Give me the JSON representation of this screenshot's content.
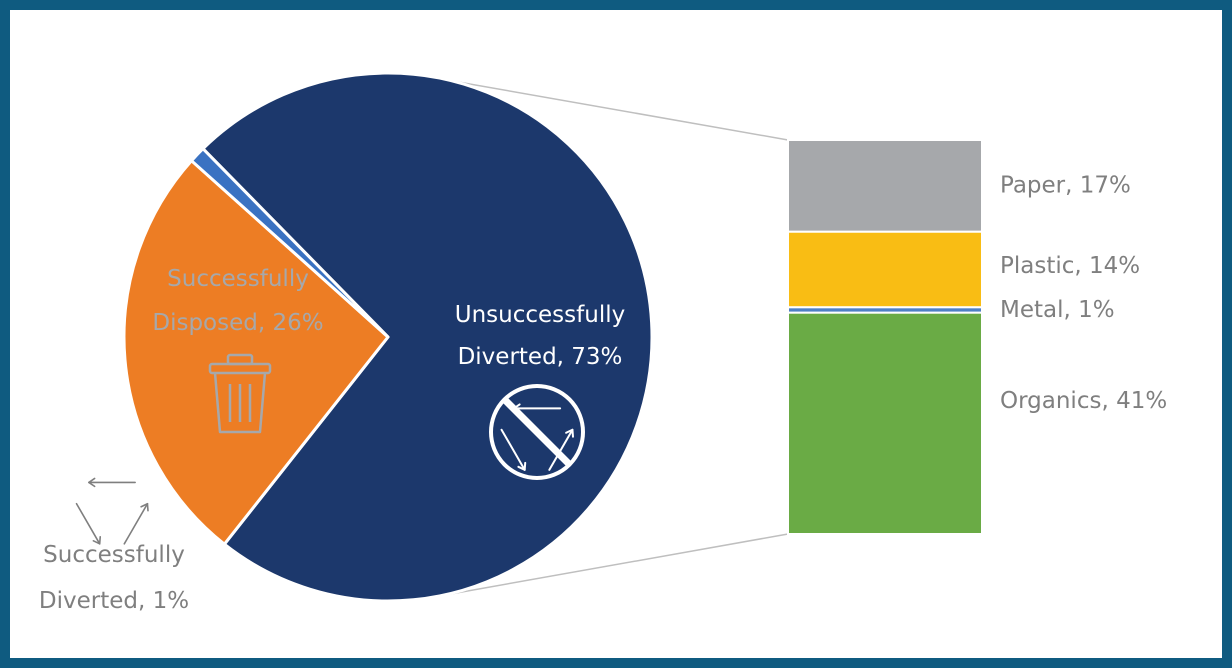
{
  "chart_data": {
    "type": "pie",
    "slices": [
      {
        "label_line1": "Unsuccessfully",
        "label_line2": "Diverted, 73%",
        "value": 73,
        "color": "#1c386c",
        "icon": "no-recycle-icon"
      },
      {
        "label_line1": "Successfully",
        "label_line2": "Disposed, 26%",
        "value": 26,
        "color": "#ed7d24",
        "icon": "trash-can-icon"
      },
      {
        "label_line1": "Successfully",
        "label_line2": "Diverted, 1%",
        "value": 1,
        "color": "#3a72c2",
        "icon": "recycle-icon"
      }
    ],
    "breakdown": {
      "of_slice": "Unsuccessfully Diverted, 73%",
      "items": [
        {
          "label": "Paper, 17%",
          "value": 17,
          "color": "#a6a8ab"
        },
        {
          "label": "Plastic, 14%",
          "value": 14,
          "color": "#f9bd14"
        },
        {
          "label": "Metal, 1%",
          "value": 1,
          "color": "#4f7fc5"
        },
        {
          "label": "Organics, 41%",
          "value": 41,
          "color": "#6aab45"
        }
      ]
    },
    "colors": {
      "label_light": "#ffffff",
      "label_disposed": "#a6a8ab",
      "label_dark": "#7f7f7f",
      "connector": "#bfbfbf"
    }
  }
}
